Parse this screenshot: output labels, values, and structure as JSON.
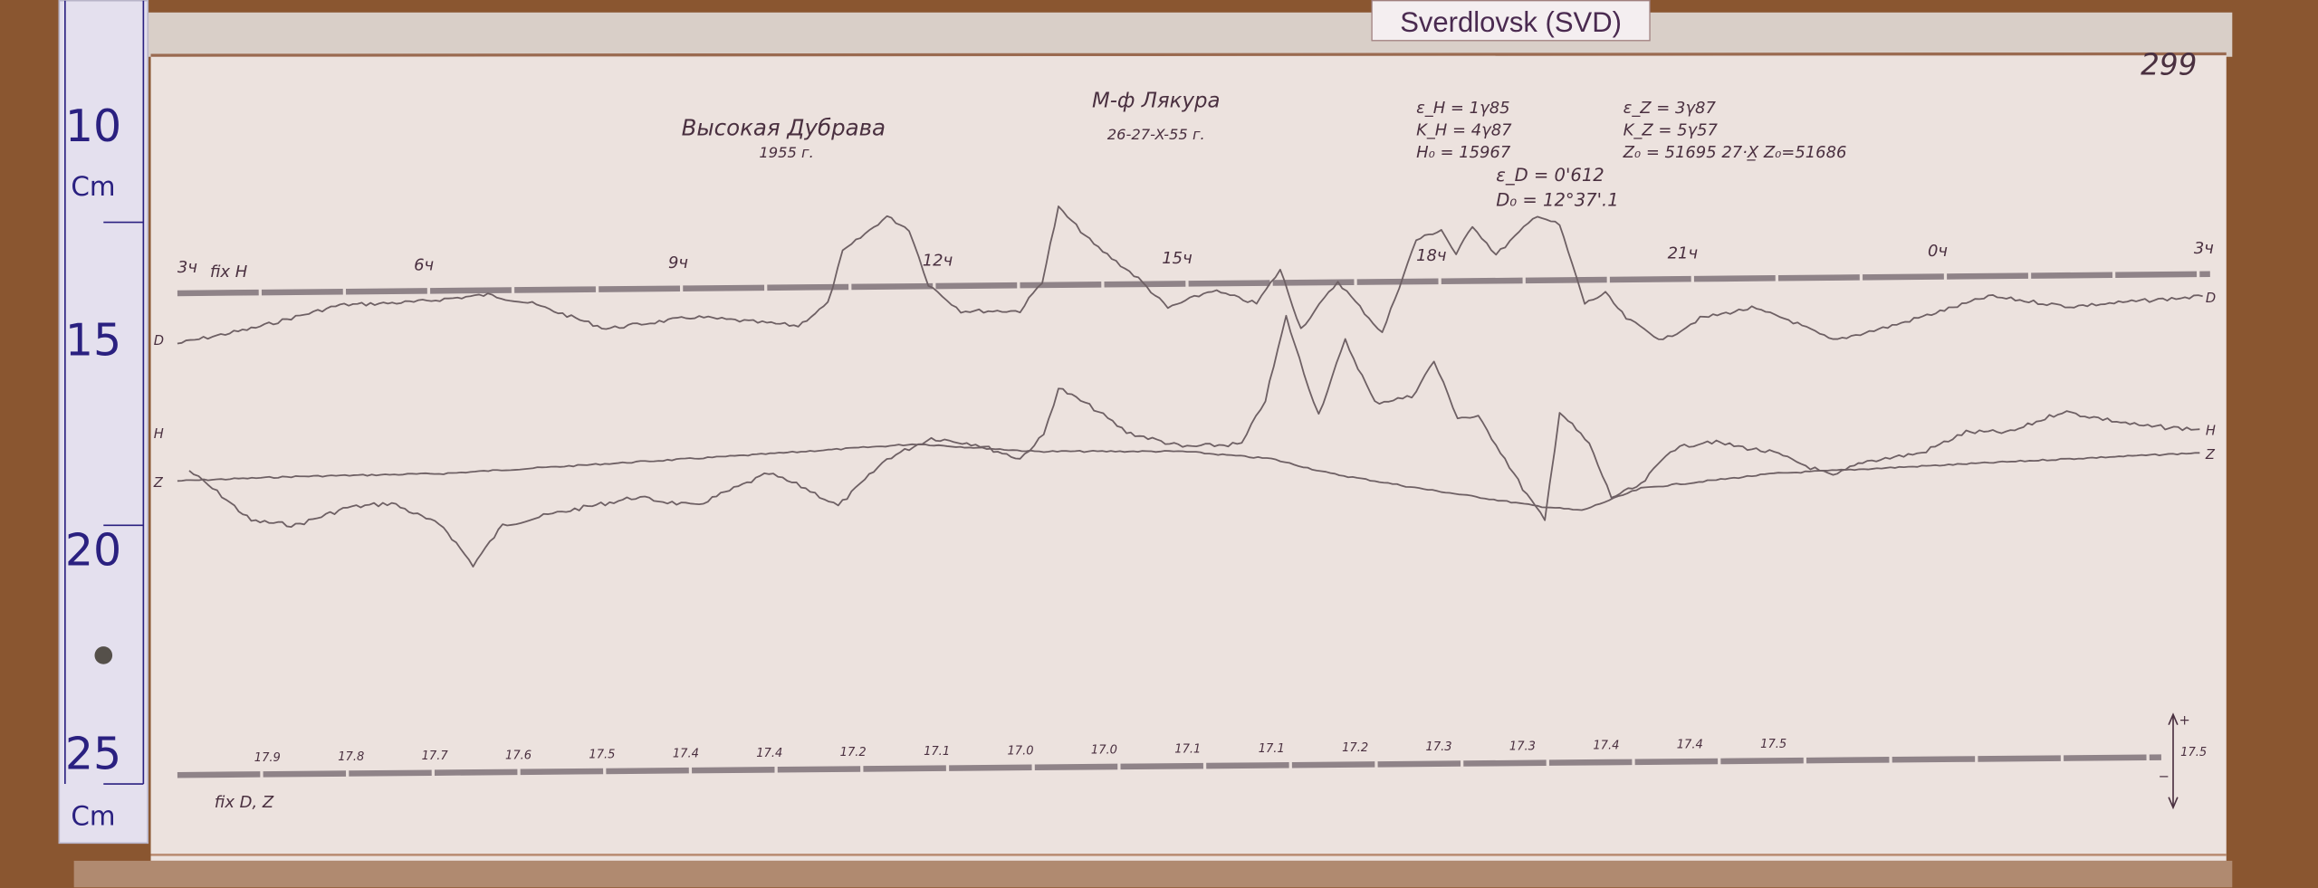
{
  "station_label": "Sverdlovsk (SVD)",
  "sheet_number": "299",
  "title": "Высокая Дубрава",
  "year": "1955 г.",
  "observer": "М-ф Лякура",
  "date": "26-27-X-55 г.",
  "parameters": {
    "eps_h": "ε_H = 1γ85",
    "k_h": "K_H = 4γ87",
    "h0": "H₀ = 15967",
    "eps_z": "ε_Z = 3γ87",
    "k_z": "K_Z = 5γ57",
    "z0": "Z₀ = 51695 27·X̲ Z₀=51686",
    "eps_d": "ε_D = 0'612",
    "d0": "D₀ = 12°37'.1"
  },
  "top_baseline_label": "fix H",
  "hour_marks": [
    "3ч",
    "6ч",
    "9ч",
    "12ч",
    "15ч",
    "18ч",
    "21ч",
    "0ч",
    "3ч"
  ],
  "bottom_baseline_label": "fix D, Z",
  "temperature_marks": [
    "17.9",
    "17.8",
    "17.7",
    "17.6",
    "17.5",
    "17.4",
    "17.4",
    "17.2",
    "17.1",
    "17.0",
    "17.0",
    "17.1",
    "17.1",
    "17.2",
    "17.3",
    "17.3",
    "17.4",
    "17.4",
    "17.5"
  ],
  "end_temperature": "17.5",
  "trace_labels": {
    "d_left": "D",
    "h_left": "H",
    "z_left": "Z",
    "d_right": "D",
    "h_right": "H",
    "z_right": "Z"
  },
  "scale_sign_plus": "+",
  "scale_sign_minus": "−",
  "ruler": {
    "marks": [
      "10",
      "15",
      "20",
      "25"
    ],
    "unit": "Cm"
  },
  "colors": {
    "paper": "#ece2de",
    "ink": "#4a3040",
    "ruler_ink": "#2a2080",
    "wood": "#8a5630"
  }
}
